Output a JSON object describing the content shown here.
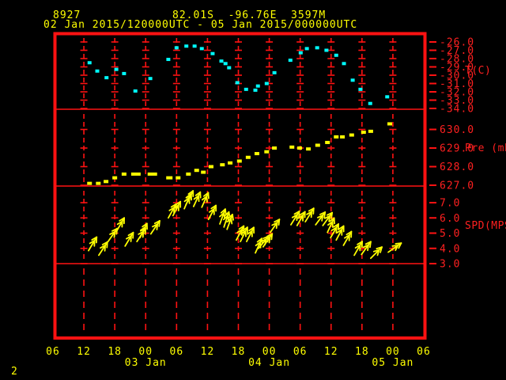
{
  "header": {
    "station_id": "8927",
    "location": "82.01S  -96.76E  3597M",
    "period": "02 Jan 2015/120000UTC - 05 Jan 2015/000000UTC"
  },
  "corner_label": "2",
  "colors": {
    "background": "#000000",
    "frame_red": "#ff1212",
    "label_red": "#ff2020",
    "temp_cyan": "#00ffff",
    "data_yellow": "#ffff00"
  },
  "x_axis": {
    "unit": "hours since 02 Jan 2015 00:00 UTC",
    "tick_hours": [
      6,
      12,
      18,
      24,
      30,
      36,
      42,
      48,
      54,
      60,
      66,
      72,
      78
    ],
    "tick_labels": [
      "06",
      "12",
      "18",
      "00",
      "06",
      "12",
      "18",
      "00",
      "06",
      "12",
      "18",
      "00",
      "06"
    ],
    "day_labels": [
      {
        "hour": 24,
        "label": "03 Jan"
      },
      {
        "hour": 48,
        "label": "04 Jan"
      },
      {
        "hour": 72,
        "label": "05 Jan"
      }
    ]
  },
  "chart_data": [
    {
      "type": "scatter",
      "name": "temperature",
      "ylabel": "T(C)",
      "yticks": [
        -26,
        -27,
        -28,
        -29,
        -30,
        -31,
        -32,
        -33,
        -34
      ],
      "ylim": [
        -25.0,
        -34.1
      ],
      "color": "#00ffff",
      "point_format": "[hour, temp_C]",
      "points": [
        [
          13.1,
          -28.5
        ],
        [
          14.6,
          -29.5
        ],
        [
          16.4,
          -30.3
        ],
        [
          18.3,
          -29.3
        ],
        [
          19.8,
          -29.8
        ],
        [
          22.0,
          -31.9
        ],
        [
          24.9,
          -30.4
        ],
        [
          28.4,
          -28.1
        ],
        [
          30.0,
          -26.7
        ],
        [
          31.9,
          -26.5
        ],
        [
          33.5,
          -26.5
        ],
        [
          34.9,
          -26.8
        ],
        [
          37.0,
          -27.4
        ],
        [
          38.7,
          -28.3
        ],
        [
          39.5,
          -28.6
        ],
        [
          40.2,
          -29.1
        ],
        [
          41.8,
          -30.9
        ],
        [
          43.5,
          -31.7
        ],
        [
          45.3,
          -31.8
        ],
        [
          45.8,
          -31.3
        ],
        [
          47.5,
          -31.0
        ],
        [
          49.0,
          -29.7
        ],
        [
          52.1,
          -28.2
        ],
        [
          54.1,
          -27.3
        ],
        [
          55.3,
          -26.8
        ],
        [
          57.3,
          -26.7
        ],
        [
          59.1,
          -27.0
        ],
        [
          61.0,
          -27.6
        ],
        [
          62.5,
          -28.6
        ],
        [
          64.2,
          -30.6
        ],
        [
          65.7,
          -31.7
        ],
        [
          67.6,
          -33.4
        ],
        [
          70.9,
          -32.6
        ]
      ]
    },
    {
      "type": "scatter",
      "name": "pressure",
      "ylabel": "Pre (mb)",
      "yticks": [
        630,
        629,
        628,
        627
      ],
      "ylim": [
        631.1,
        627.0
      ],
      "color": "#ffff00",
      "point_format": "[hour, pressure_mb, optional_dash_width_px]",
      "points": [
        [
          13.1,
          627.1
        ],
        [
          14.8,
          627.1
        ],
        [
          16.3,
          627.2
        ],
        [
          18.0,
          627.4
        ],
        [
          19.8,
          627.6
        ],
        [
          22.1,
          627.6,
          12
        ],
        [
          25.3,
          627.6,
          12
        ],
        [
          28.6,
          627.4,
          8
        ],
        [
          30.3,
          627.4
        ],
        [
          32.3,
          627.6
        ],
        [
          33.9,
          627.8
        ],
        [
          35.2,
          627.7
        ],
        [
          36.7,
          628.0
        ],
        [
          38.9,
          628.1
        ],
        [
          40.4,
          628.2
        ],
        [
          42.2,
          628.3
        ],
        [
          43.9,
          628.5
        ],
        [
          45.6,
          628.7
        ],
        [
          47.5,
          628.8
        ],
        [
          49.0,
          629.0
        ],
        [
          52.4,
          629.05
        ],
        [
          53.9,
          629.0
        ],
        [
          55.6,
          628.95
        ],
        [
          57.4,
          629.15
        ],
        [
          59.3,
          629.3
        ],
        [
          61.0,
          629.6
        ],
        [
          62.2,
          629.6
        ],
        [
          64.0,
          629.7
        ],
        [
          66.3,
          629.85
        ],
        [
          67.7,
          629.9
        ],
        [
          71.4,
          630.3
        ]
      ]
    },
    {
      "type": "vector",
      "name": "wind_speed",
      "ylabel": "SPD(MPS)",
      "yticks": [
        7,
        6,
        5,
        4,
        3
      ],
      "ylim": [
        8.0,
        3.0
      ],
      "color": "#ffff00",
      "point_format": "[hour, speed_mps, arrow_angle_deg_ccw_from_right]",
      "points": [
        [
          12.9,
          3.85,
          59
        ],
        [
          14.9,
          3.55,
          57
        ],
        [
          16.7,
          4.45,
          55
        ],
        [
          18.3,
          5.1,
          60
        ],
        [
          20.0,
          4.15,
          59
        ],
        [
          22.3,
          4.45,
          57
        ],
        [
          22.9,
          4.7,
          64
        ],
        [
          25.0,
          4.95,
          56
        ],
        [
          28.4,
          6.0,
          61
        ],
        [
          29.3,
          6.15,
          62
        ],
        [
          31.5,
          6.6,
          67
        ],
        [
          31.8,
          6.85,
          63
        ],
        [
          33.3,
          6.75,
          65
        ],
        [
          34.9,
          6.7,
          66
        ],
        [
          36.2,
          5.9,
          62
        ],
        [
          38.4,
          5.6,
          70
        ],
        [
          39.2,
          5.4,
          72
        ],
        [
          39.8,
          5.25,
          70
        ],
        [
          41.6,
          4.55,
          62
        ],
        [
          42.4,
          4.45,
          64
        ],
        [
          43.6,
          4.45,
          63
        ],
        [
          45.3,
          3.7,
          66
        ],
        [
          45.9,
          4.0,
          50
        ],
        [
          46.8,
          4.1,
          55
        ],
        [
          48.2,
          5.05,
          55
        ],
        [
          52.2,
          5.55,
          58
        ],
        [
          53.4,
          5.5,
          60
        ],
        [
          55.0,
          5.75,
          58
        ],
        [
          57.0,
          5.55,
          53
        ],
        [
          58.4,
          5.5,
          54
        ],
        [
          59.3,
          5.05,
          65
        ],
        [
          59.9,
          4.7,
          60
        ],
        [
          61.0,
          4.55,
          62
        ],
        [
          62.4,
          4.2,
          60
        ],
        [
          64.5,
          3.55,
          60
        ],
        [
          65.9,
          3.6,
          54
        ],
        [
          67.7,
          3.35,
          45
        ],
        [
          71.1,
          3.75,
          35
        ]
      ]
    }
  ]
}
